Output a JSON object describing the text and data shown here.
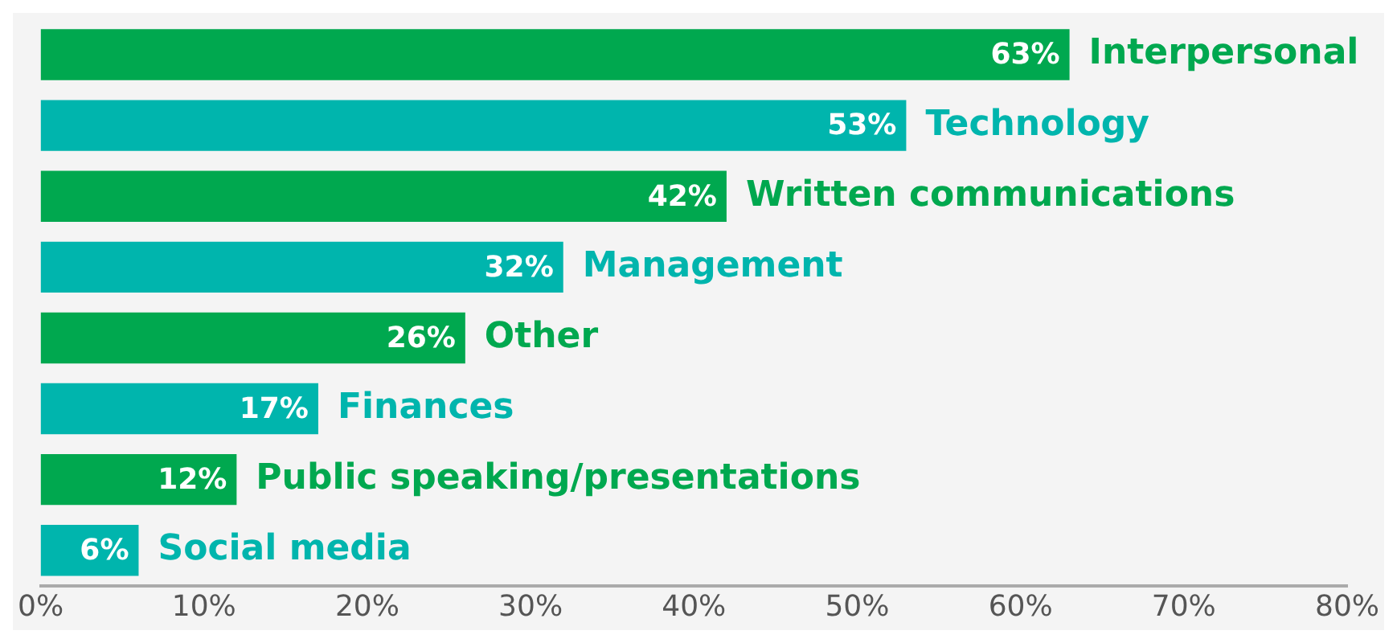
{
  "chart_data": {
    "type": "bar",
    "orientation": "horizontal",
    "categories": [
      "Interpersonal",
      "Technology",
      "Written communications",
      "Management",
      "Other",
      "Finances",
      "Public speaking/presentations",
      "Social media"
    ],
    "values": [
      63,
      53,
      42,
      32,
      26,
      17,
      12,
      6
    ],
    "value_labels": [
      "63%",
      "53%",
      "42%",
      "32%",
      "26%",
      "17%",
      "12%",
      "6%"
    ],
    "colors": [
      "#00a84f",
      "#00b5ad",
      "#00a84f",
      "#00b5ad",
      "#00a84f",
      "#00b5ad",
      "#00a84f",
      "#00b5ad"
    ],
    "xlim": [
      0,
      80
    ],
    "xticks": [
      {
        "value": 0,
        "label": "0%"
      },
      {
        "value": 10,
        "label": "10%"
      },
      {
        "value": 20,
        "label": "20%"
      },
      {
        "value": 30,
        "label": "30%"
      },
      {
        "value": 40,
        "label": "40%"
      },
      {
        "value": 50,
        "label": "50%"
      },
      {
        "value": 60,
        "label": "60%"
      },
      {
        "value": 70,
        "label": "70%"
      },
      {
        "value": 80,
        "label": "80%"
      }
    ],
    "grid": false,
    "legend": false
  }
}
